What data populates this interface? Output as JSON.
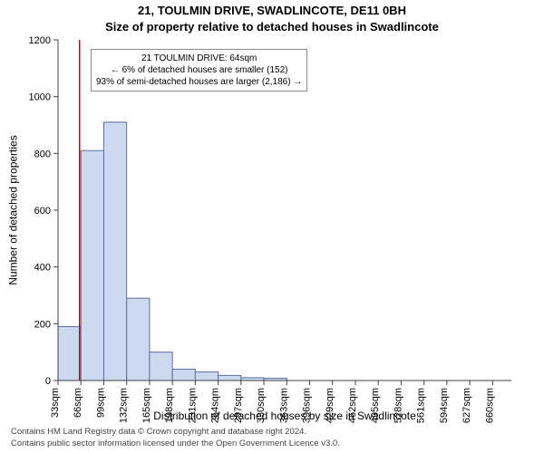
{
  "title_line1": "21, TOULMIN DRIVE, SWADLINCOTE, DE11 0BH",
  "title_line2": "Size of property relative to detached houses in Swadlincote",
  "ylabel": "Number of detached properties",
  "xlabel": "Distribution of detached houses by size in Swadlincote",
  "chart": {
    "type": "bar",
    "bar_fill": "#cdd9ef",
    "bar_stroke": "#5a6fa6",
    "bar_stroke_width": 1,
    "marker_line_color": "#d40000",
    "marker_line_width": 1.5,
    "background": "#ffffff",
    "axis_color": "#404040",
    "x_min": 33,
    "x_max": 687,
    "x_tick_start": 33,
    "x_tick_step": 33,
    "x_tick_unit": "sqm",
    "ylim": [
      0,
      1200
    ],
    "ytick_step": 200,
    "marker_x": 64,
    "bar_half_width": 16.5,
    "bars": [
      {
        "center": 49.5,
        "value": 190
      },
      {
        "center": 82.5,
        "value": 810
      },
      {
        "center": 115.5,
        "value": 910
      },
      {
        "center": 148.5,
        "value": 290
      },
      {
        "center": 181.5,
        "value": 100
      },
      {
        "center": 214.5,
        "value": 40
      },
      {
        "center": 247.5,
        "value": 30
      },
      {
        "center": 280.5,
        "value": 18
      },
      {
        "center": 313.5,
        "value": 10
      },
      {
        "center": 346.5,
        "value": 8
      }
    ]
  },
  "infobox": {
    "line1": "21 TOULMIN DRIVE: 64sqm",
    "line2": "← 6% of detached houses are smaller (152)",
    "line3": "93% of semi-detached houses are larger (2,186) →"
  },
  "credits": {
    "line1": "Contains HM Land Registry data © Crown copyright and database right 2024.",
    "line2": "Contains public sector information licensed under the Open Government Licence v3.0."
  }
}
